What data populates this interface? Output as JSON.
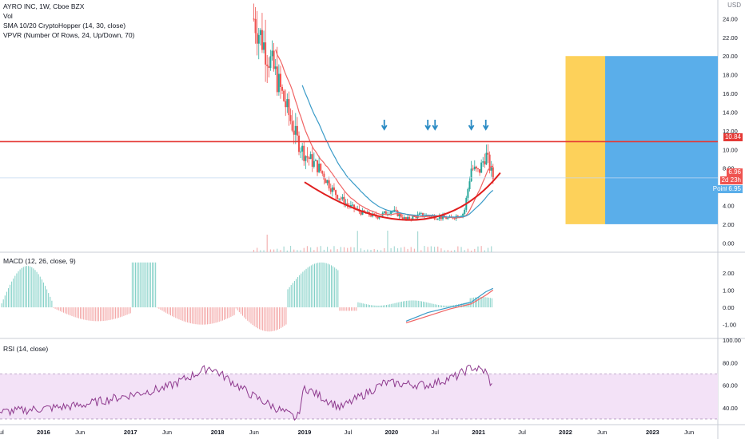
{
  "legend": {
    "symbol": "AYRO INC, 1W, Cboe BZX",
    "vol": "Vol",
    "sma": "SMA 10/20 CryptoHopper (14, 30, close)",
    "vpvr": "VPVR (Number Of Rows, 24, Up/Down, 70)"
  },
  "macd_label": "MACD (12, 26, close, 9)",
  "rsi_label": "RSI (14, close)",
  "price_tags": {
    "currency": "USD",
    "resistance": "10.84",
    "last": "6.96",
    "countdown": "2d 23h",
    "point_label": "Point",
    "point_value": "6.95"
  },
  "colors": {
    "up": "#26a69a",
    "down": "#ef5350",
    "resistance": "#e53935",
    "arrow": "#2a8bc4",
    "sma_fast": "#f06464",
    "sma_slow": "#3a9bc8",
    "stop_zone": "#fdd15a",
    "target_zone": "#5aaeea",
    "rsi_line": "#8e3a8e",
    "rsi_band": "#f3e2f7"
  },
  "chart_data": [
    {
      "type": "candlestick",
      "title": "AYRO INC, 1W, Cboe BZX",
      "x_ticks": [
        "Jul",
        "2016",
        "Jun",
        "2017",
        "Jun",
        "2018",
        "Jun",
        "2019",
        "Jul",
        "2020",
        "Jul",
        "2021",
        "Jul",
        "2022",
        "Jun",
        "2023",
        "Jun"
      ],
      "y_ticks": [
        "0.00",
        "2.00",
        "4.00",
        "6.00",
        "8.00",
        "10.00",
        "12.00",
        "14.00",
        "16.00",
        "18.00",
        "20.00",
        "22.00",
        "24.00"
      ],
      "ylim": [
        -1,
        26
      ],
      "resistance_level": 10.84,
      "last_price": 6.96,
      "sma_fast_period": 14,
      "sma_slow_period": 30,
      "price_annotations": [
        "down arrows at 2019-12, 2020-06, 2020-07, 2020-12, 2021-02",
        "rounded bottom arc 2019-01 to 2021-04, low ~1.0"
      ],
      "position_zone": {
        "entry": 10.84,
        "stop": 2.0,
        "target": 20.0,
        "from": "2022-01",
        "to": "2023-10"
      },
      "series": [
        {
          "name": "close",
          "x": [
            "2018-06",
            "2018-09",
            "2018-12",
            "2019-01",
            "2019-03",
            "2019-05",
            "2019-07",
            "2019-09",
            "2019-11",
            "2020-01",
            "2020-03",
            "2020-05",
            "2020-07",
            "2020-09",
            "2020-11",
            "2020-12",
            "2021-01",
            "2021-02",
            "2021-03"
          ],
          "values": [
            24,
            18,
            11,
            9.5,
            8,
            5.5,
            4,
            3.2,
            2.8,
            3.5,
            2.5,
            3.0,
            2.8,
            2.6,
            3.2,
            8,
            7.5,
            9.5,
            6.96
          ]
        }
      ]
    },
    {
      "type": "bar",
      "title": "MACD (12, 26, close, 9)",
      "y_ticks": [
        "-1.00",
        "0.00",
        "1.00",
        "2.00"
      ],
      "ylim": [
        -1.8,
        3.1
      ],
      "series": [
        {
          "name": "MACD",
          "x": [
            "2020-03",
            "2020-06",
            "2020-09",
            "2020-12",
            "2021-02",
            "2021-03"
          ],
          "values": [
            -0.8,
            -0.3,
            0.0,
            0.3,
            0.9,
            1.1
          ]
        },
        {
          "name": "Signal",
          "x": [
            "2020-03",
            "2020-06",
            "2020-09",
            "2020-12",
            "2021-02",
            "2021-03"
          ],
          "values": [
            -0.9,
            -0.5,
            -0.1,
            0.2,
            0.7,
            1.0
          ]
        }
      ]
    },
    {
      "type": "line",
      "title": "RSI (14, close)",
      "y_ticks": [
        "40.00",
        "60.00",
        "80.00",
        "100.00"
      ],
      "ylim": [
        25,
        100
      ],
      "band": [
        30,
        70
      ],
      "series": [
        {
          "name": "RSI",
          "x": [
            "2015-07",
            "2016-06",
            "2017-06",
            "2017-12",
            "2018-06",
            "2018-12",
            "2019-01",
            "2019-06",
            "2019-12",
            "2020-06",
            "2020-10",
            "2020-12",
            "2021-02",
            "2021-03"
          ],
          "values": [
            36,
            42,
            58,
            76,
            50,
            30,
            58,
            40,
            62,
            60,
            68,
            76,
            72,
            57
          ]
        }
      ]
    }
  ]
}
